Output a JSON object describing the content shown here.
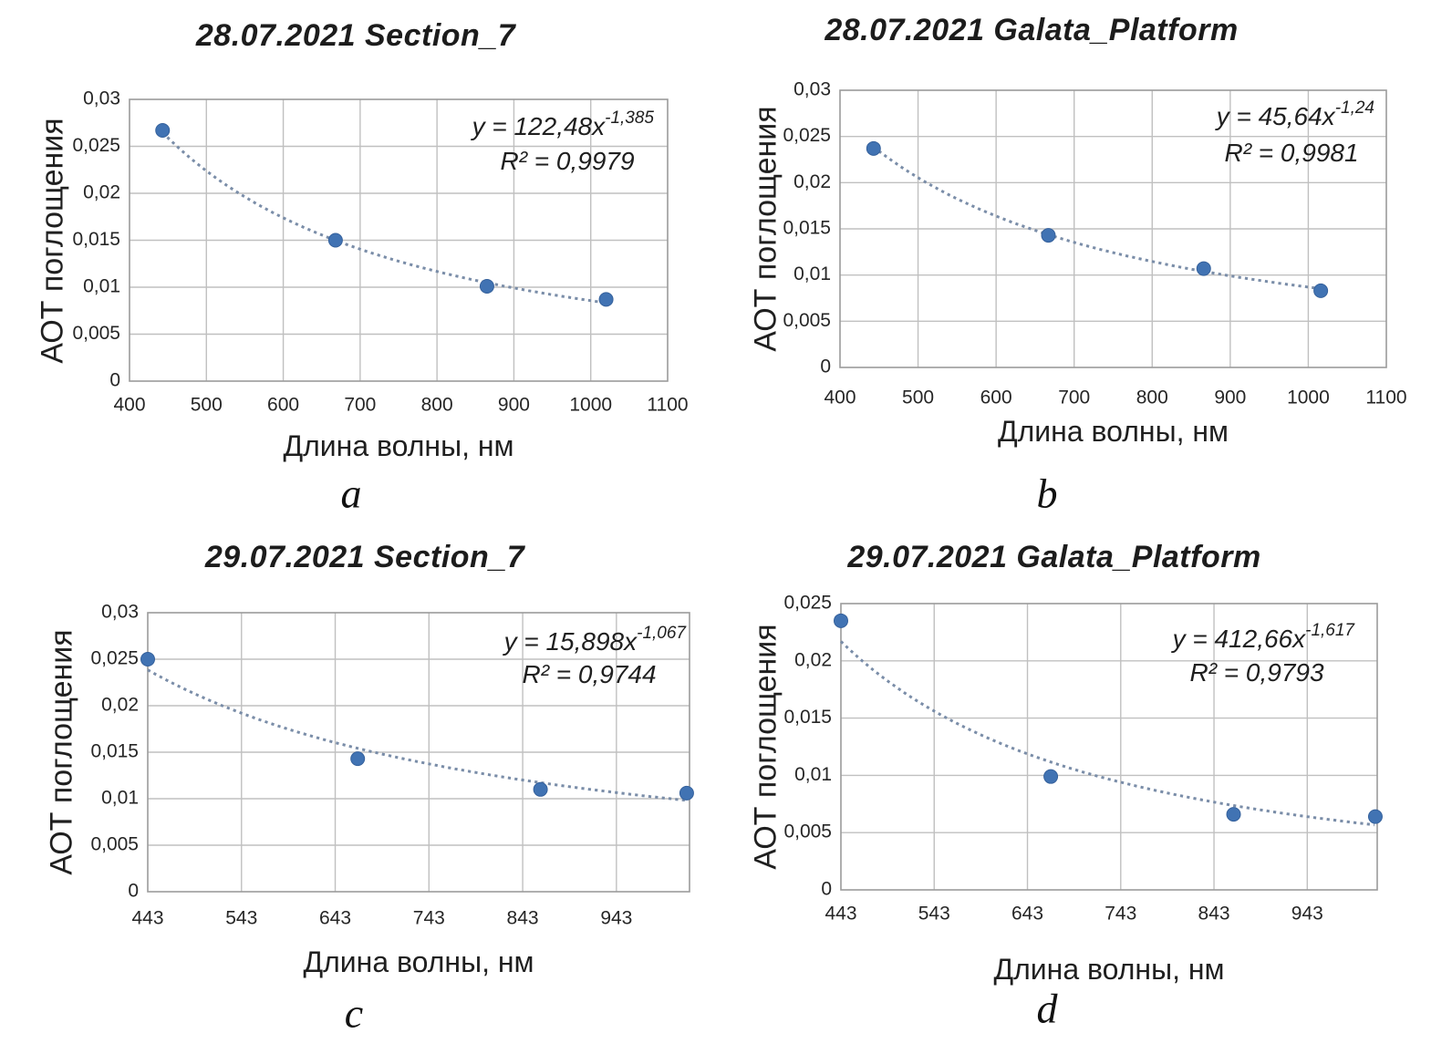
{
  "page": {
    "background": "#ffffff"
  },
  "styles": {
    "marker_color": "#4173b3",
    "marker_edge": "#35619c",
    "trend_color": "#7a8da8",
    "grid_color": "#c0c0c0",
    "axis_color": "#9b9b9b",
    "text_color": "#1f1f1f",
    "tick_color": "#262626"
  },
  "chart_data": [
    {
      "id": "a",
      "type": "scatter",
      "title": "28.07.2021 Section_7",
      "caption": "a",
      "xlabel": "Длина волны, нм",
      "ylabel": "АОТ поглощения",
      "xlim": [
        400,
        1100
      ],
      "ylim": [
        0,
        0.03
      ],
      "xtick_values": [
        400,
        500,
        600,
        700,
        800,
        900,
        1000,
        1100
      ],
      "xtick_labels": [
        "400",
        "500",
        "600",
        "700",
        "800",
        "900",
        "1000",
        "1100"
      ],
      "ytick_values": [
        0,
        0.005,
        0.01,
        0.015,
        0.02,
        0.025,
        0.03
      ],
      "ytick_labels": [
        "0",
        "0,005",
        "0,01",
        "0,015",
        "0,02",
        "0,025",
        "0,03"
      ],
      "points": {
        "x": [
          443,
          668,
          865,
          1020
        ],
        "y": [
          0.0267,
          0.015,
          0.0101,
          0.0087
        ]
      },
      "trendline": {
        "type": "power",
        "coefficient": 122.48,
        "exponent": -1.385,
        "x_start": 443,
        "x_end": 1020
      },
      "equation_base": "y = 122,48x",
      "equation_exponent": "-1,385",
      "r_squared_label": "R² = 0,9979"
    },
    {
      "id": "b",
      "type": "scatter",
      "title": "28.07.2021 Galata_Platform",
      "caption": "b",
      "xlabel": "Длина волны, нм",
      "ylabel": "АОТ поглощения",
      "xlim": [
        400,
        1100
      ],
      "ylim": [
        0,
        0.03
      ],
      "xtick_values": [
        400,
        500,
        600,
        700,
        800,
        900,
        1000,
        1100
      ],
      "xtick_labels": [
        "400",
        "500",
        "600",
        "700",
        "800",
        "900",
        "1000",
        "1100"
      ],
      "ytick_values": [
        0,
        0.005,
        0.01,
        0.015,
        0.02,
        0.025,
        0.03
      ],
      "ytick_labels": [
        "0",
        "0,005",
        "0,01",
        "0,015",
        "0,02",
        "0,025",
        "0,03"
      ],
      "points": {
        "x": [
          443,
          667,
          866,
          1016
        ],
        "y": [
          0.0237,
          0.0143,
          0.0107,
          0.0083
        ]
      },
      "trendline": {
        "type": "power",
        "coefficient": 45.64,
        "exponent": -1.24,
        "x_start": 443,
        "x_end": 1016
      },
      "equation_base": "y = 45,64x",
      "equation_exponent": "-1,24",
      "r_squared_label": "R² = 0,9981"
    },
    {
      "id": "c",
      "type": "scatter",
      "title": "29.07.2021 Section_7",
      "caption": "c",
      "xlabel": "Длина волны, нм",
      "ylabel": "АОТ поглощения",
      "xlim": [
        443,
        1021
      ],
      "ylim": [
        0,
        0.03
      ],
      "xtick_values": [
        443,
        543,
        643,
        743,
        843,
        943
      ],
      "xtick_labels": [
        "443",
        "543",
        "643",
        "743",
        "843",
        "943"
      ],
      "ytick_values": [
        0,
        0.005,
        0.01,
        0.015,
        0.02,
        0.025,
        0.03
      ],
      "ytick_labels": [
        "0",
        "0,005",
        "0,01",
        "0,015",
        "0,02",
        "0,025",
        "0,03"
      ],
      "points": {
        "x": [
          443,
          667,
          862,
          1018
        ],
        "y": [
          0.025,
          0.0143,
          0.011,
          0.0106
        ]
      },
      "trendline": {
        "type": "power",
        "coefficient": 15.898,
        "exponent": -1.067,
        "x_start": 443,
        "x_end": 1021
      },
      "equation_base": "y = 15,898x",
      "equation_exponent": "-1,067",
      "r_squared_label": "R² = 0,9744"
    },
    {
      "id": "d",
      "type": "scatter",
      "title": "29.07.2021 Galata_Platform",
      "caption": "d",
      "xlabel": "Длина волны, нм",
      "ylabel": "АОТ поглощения",
      "xlim": [
        443,
        1018
      ],
      "ylim": [
        0,
        0.025
      ],
      "xtick_values": [
        443,
        543,
        643,
        743,
        843,
        943
      ],
      "xtick_labels": [
        "443",
        "543",
        "643",
        "743",
        "843",
        "943"
      ],
      "ytick_values": [
        0,
        0.005,
        0.01,
        0.015,
        0.02,
        0.025
      ],
      "ytick_labels": [
        "0",
        "0,005",
        "0,01",
        "0,015",
        "0,02",
        "0,025"
      ],
      "points": {
        "x": [
          443,
          668,
          864,
          1016
        ],
        "y": [
          0.0235,
          0.0099,
          0.0066,
          0.0064
        ]
      },
      "trendline": {
        "type": "power",
        "coefficient": 412.66,
        "exponent": -1.617,
        "x_start": 443,
        "x_end": 1018
      },
      "equation_base": "y = 412,66x",
      "equation_exponent": "-1,617",
      "r_squared_label": "R² = 0,9793"
    }
  ]
}
